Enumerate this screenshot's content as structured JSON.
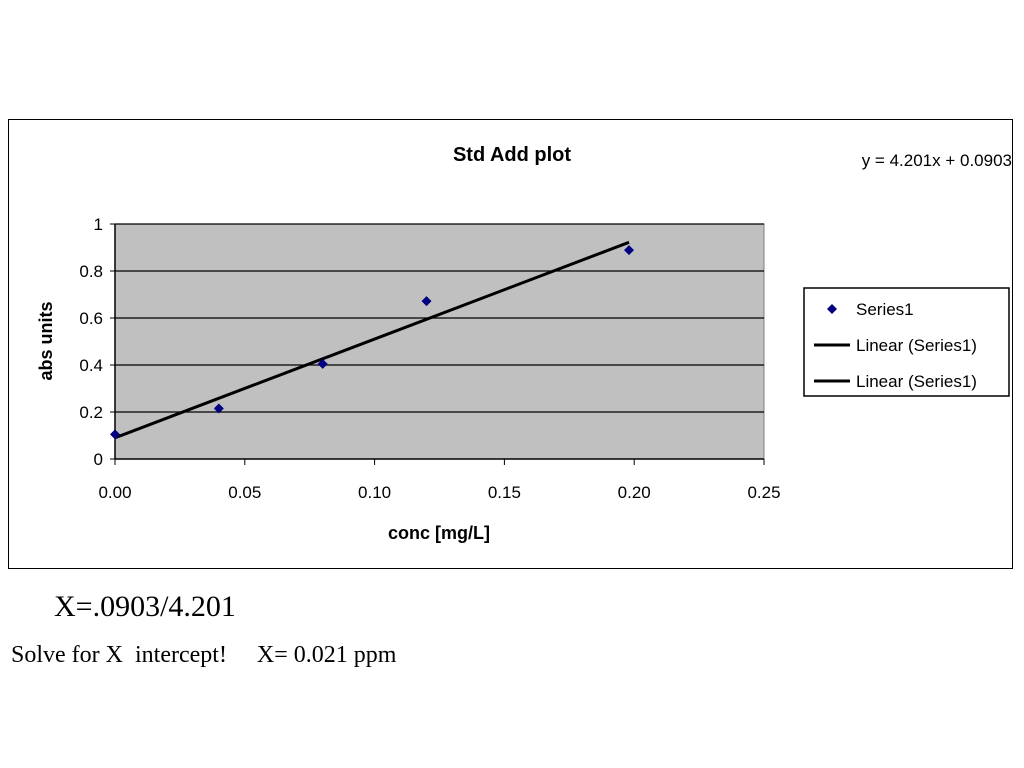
{
  "chart_data": {
    "type": "scatter",
    "title": "Std Add plot",
    "xlabel": "conc [mg/L]",
    "ylabel": "abs units",
    "xlim": [
      0,
      0.25
    ],
    "ylim": [
      0,
      1
    ],
    "x_ticks": [
      "0.00",
      "0.05",
      "0.10",
      "0.15",
      "0.20",
      "0.25"
    ],
    "y_ticks": [
      "0",
      "0.2",
      "0.4",
      "0.6",
      "0.8",
      "1"
    ],
    "grid": "horizontal",
    "plot_background": "#c0c0c0",
    "legend_position": "right",
    "series": [
      {
        "name": "Series1",
        "marker": "diamond",
        "color": "#000080",
        "x": [
          0.0,
          0.04,
          0.08,
          0.12,
          0.198
        ],
        "y": [
          0.105,
          0.215,
          0.405,
          0.672,
          0.889
        ]
      }
    ],
    "trendline": {
      "kind": "linear",
      "slope": 4.201,
      "intercept": 0.0903,
      "x_range": [
        0,
        0.198
      ],
      "color": "#000000"
    },
    "equation": "y = 4.201x + 0.0903",
    "legend": [
      {
        "label": "Series1",
        "symbol": "diamond"
      },
      {
        "label": "Linear (Series1)",
        "symbol": "line"
      },
      {
        "label": "Linear (Series1)",
        "symbol": "line"
      }
    ]
  },
  "notes": {
    "formula": "X=.0903/4.201",
    "solve": "Solve for X  intercept!     X= 0.021 ppm"
  }
}
